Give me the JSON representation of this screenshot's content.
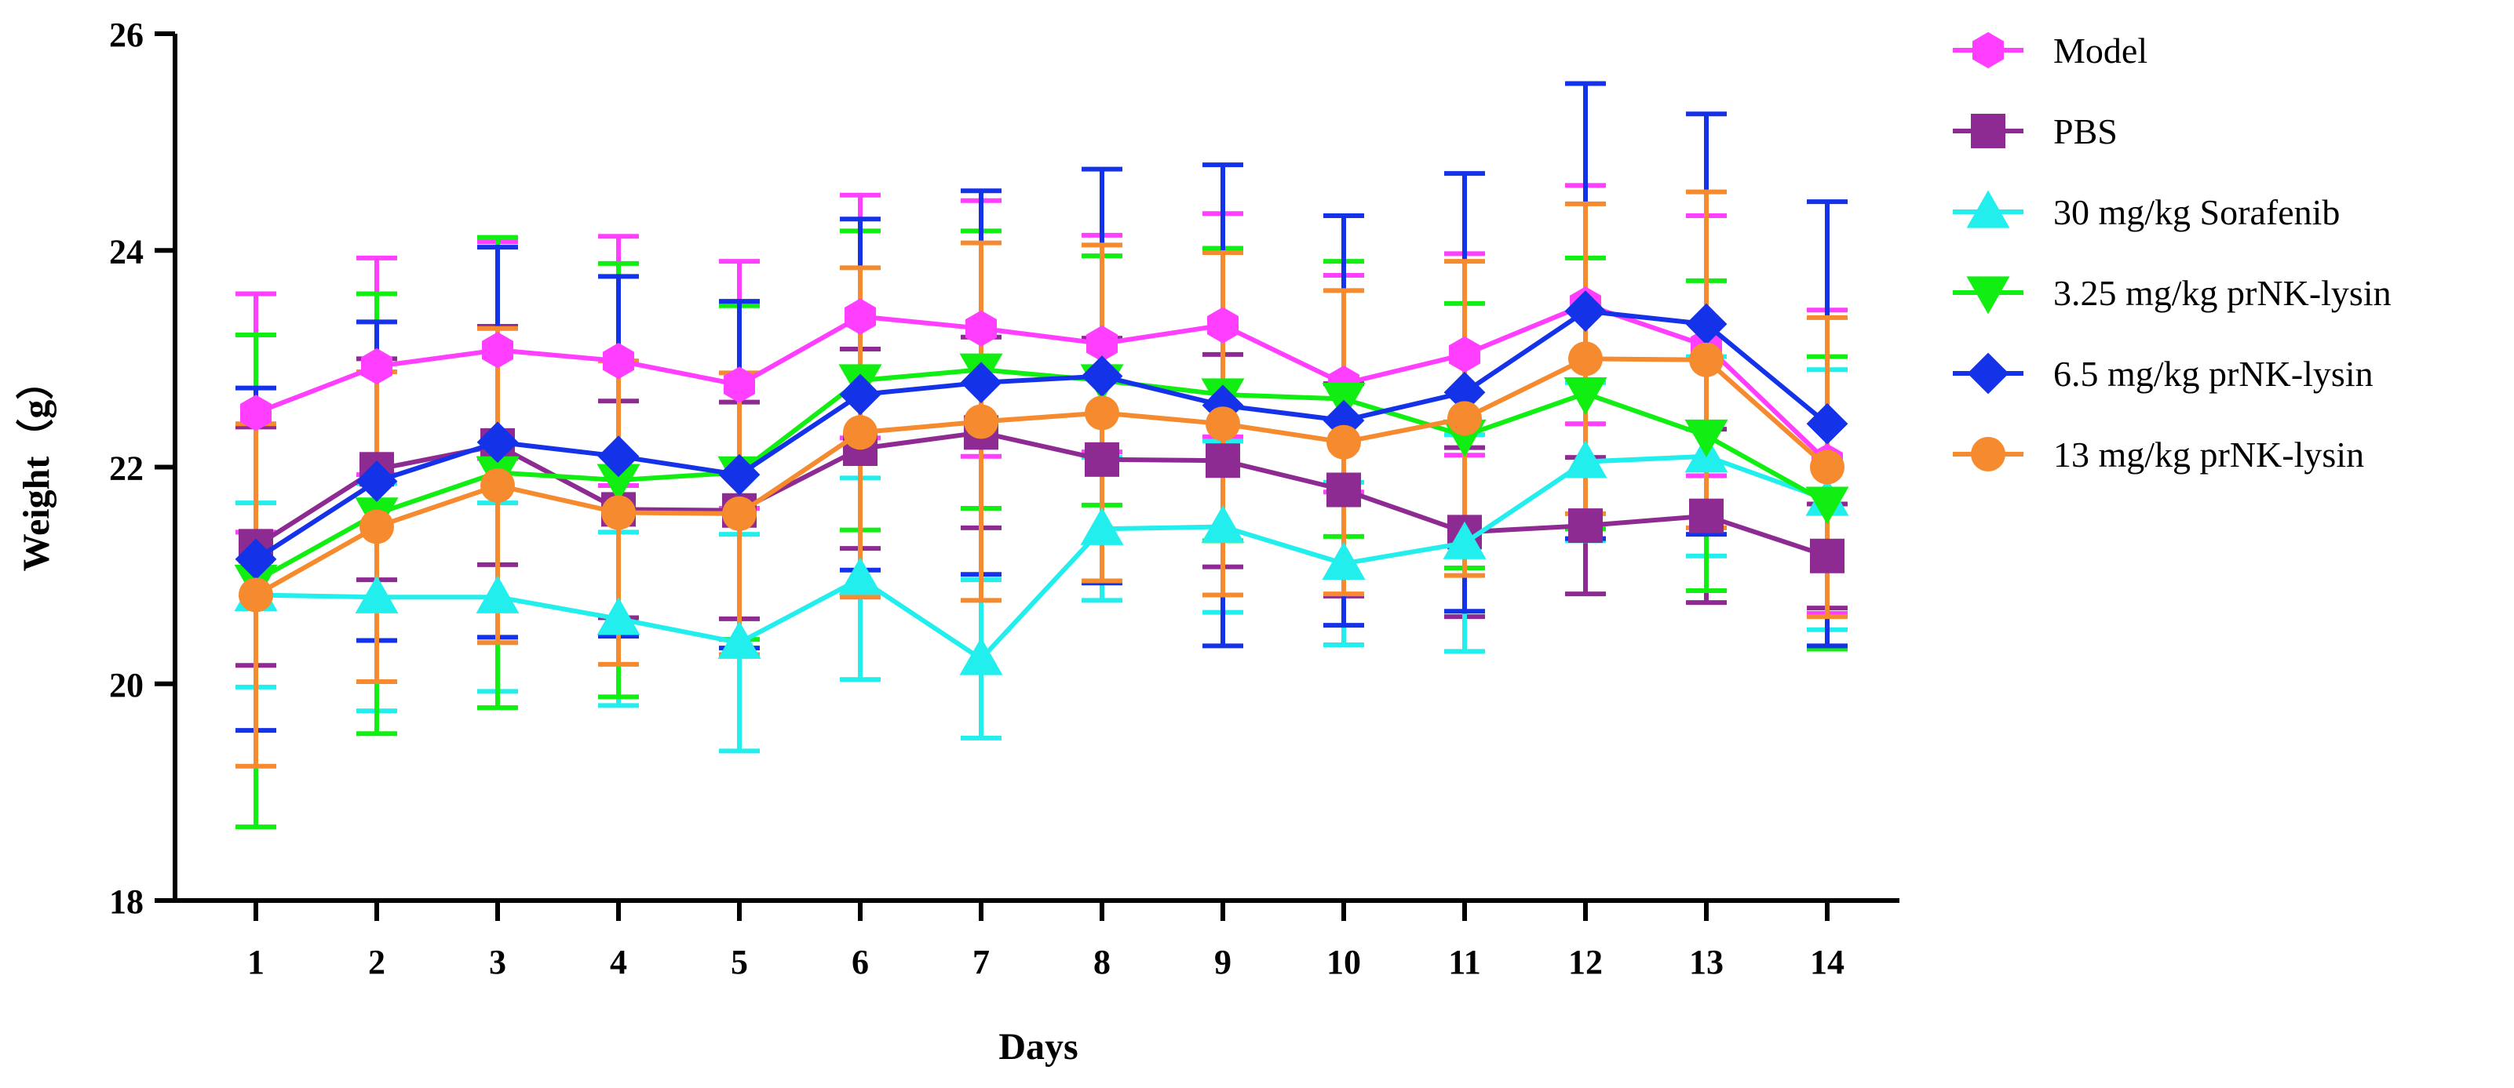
{
  "chart_data": {
    "type": "line",
    "title": "",
    "xlabel": "Days",
    "ylabel": "Weight（g）",
    "categories": [
      "1",
      "2",
      "3",
      "4",
      "5",
      "6",
      "7",
      "8",
      "9",
      "10",
      "11",
      "12",
      "13",
      "14"
    ],
    "ylim": [
      18,
      26
    ],
    "yticks": [
      "18",
      "20",
      "22",
      "24",
      "26"
    ],
    "legend_position": "right",
    "series": [
      {
        "name": "Model",
        "color": "#FF3EFF",
        "marker": "hexagon",
        "values": [
          22.5,
          22.93,
          23.08,
          22.98,
          22.76,
          23.39,
          23.28,
          23.14,
          23.31,
          22.77,
          23.04,
          23.5,
          23.12,
          22.05
        ],
        "errors": [
          1.1,
          1.0,
          1.0,
          1.15,
          1.14,
          1.12,
          1.18,
          1.0,
          1.03,
          1.0,
          0.93,
          1.1,
          1.2,
          1.4
        ]
      },
      {
        "name": "PBS",
        "color": "#8E2B92",
        "marker": "square",
        "values": [
          21.27,
          21.98,
          22.2,
          21.61,
          21.6,
          22.17,
          22.32,
          22.07,
          22.06,
          21.79,
          21.4,
          21.46,
          21.55,
          21.18
        ],
        "errors": [
          1.1,
          1.02,
          1.1,
          1.0,
          1.0,
          0.92,
          0.88,
          1.12,
          0.98,
          0.98,
          0.78,
          0.63,
          0.8,
          0.48
        ]
      },
      {
        "name": "30 mg/kg Sorafenib",
        "color": "#22EEEE",
        "marker": "triangle-up",
        "values": [
          20.82,
          20.8,
          20.8,
          20.6,
          20.38,
          20.97,
          20.23,
          21.43,
          21.45,
          21.11,
          21.3,
          22.05,
          22.1,
          21.7
        ],
        "errors": [
          0.85,
          1.05,
          0.87,
          0.8,
          1.0,
          0.93,
          0.73,
          0.66,
          0.79,
          0.75,
          1.0,
          0.73,
          0.92,
          1.2
        ]
      },
      {
        "name": "3.25 mg/kg prNK-lysin",
        "color": "#11EE11",
        "marker": "triangle-down",
        "values": [
          20.95,
          21.57,
          21.95,
          21.88,
          21.95,
          22.8,
          22.9,
          22.8,
          22.67,
          22.63,
          22.29,
          22.68,
          22.29,
          21.67
        ],
        "errors": [
          2.27,
          2.03,
          2.17,
          2.0,
          1.54,
          1.38,
          1.28,
          1.15,
          1.35,
          1.27,
          1.22,
          1.25,
          1.43,
          1.35
        ]
      },
      {
        "name": "6.5 mg/kg prNK-lysin",
        "color": "#1432E8",
        "marker": "diamond",
        "values": [
          21.15,
          21.87,
          22.23,
          22.1,
          21.93,
          22.67,
          22.78,
          22.84,
          22.57,
          22.43,
          22.69,
          23.44,
          23.32,
          22.4
        ],
        "errors": [
          1.58,
          1.47,
          1.8,
          1.66,
          1.6,
          1.62,
          1.77,
          1.91,
          2.22,
          1.89,
          2.02,
          2.1,
          1.94,
          2.05
        ]
      },
      {
        "name": "13 mg/kg prNK-lysin",
        "color": "#F58A2E",
        "marker": "circle",
        "values": [
          20.82,
          21.45,
          21.83,
          21.58,
          21.57,
          22.32,
          22.42,
          22.5,
          22.4,
          22.23,
          22.45,
          23.0,
          22.99,
          22.0
        ],
        "errors": [
          1.58,
          1.43,
          1.45,
          1.4,
          1.3,
          1.52,
          1.65,
          1.55,
          1.58,
          1.4,
          1.45,
          1.43,
          1.55,
          1.38
        ]
      }
    ]
  }
}
